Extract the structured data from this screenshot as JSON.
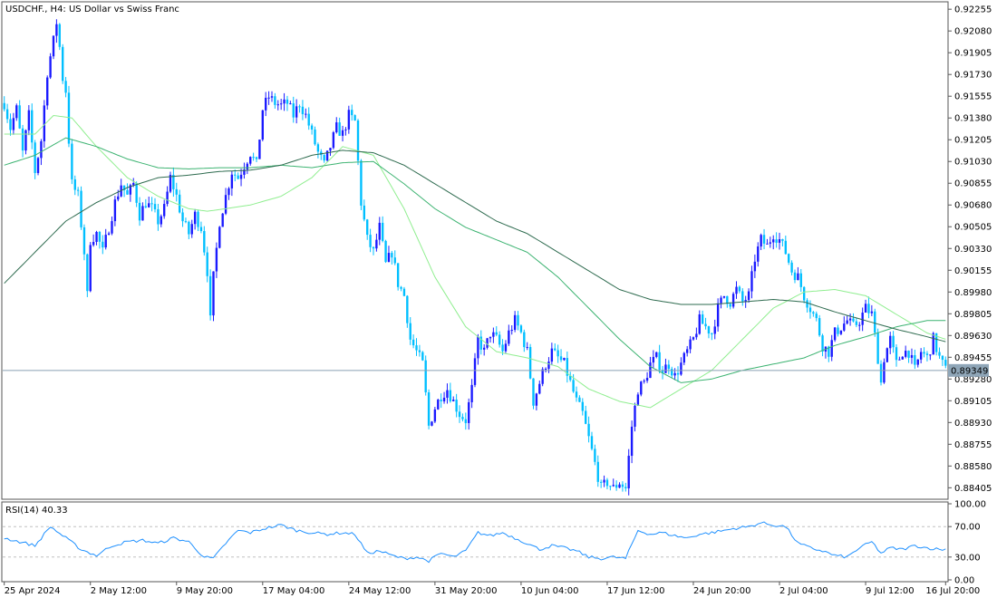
{
  "main_panel": {
    "header": "USDCHF., H4:  US Dollar vs Swiss Franc",
    "price_ticks": [
      "0.92255",
      "0.92080",
      "0.91905",
      "0.91730",
      "0.91555",
      "0.91380",
      "0.91205",
      "0.91030",
      "0.90855",
      "0.90680",
      "0.90505",
      "0.90330",
      "0.90155",
      "0.89980",
      "0.89805",
      "0.89630",
      "0.89455",
      "0.89280",
      "0.89105",
      "0.88930",
      "0.88755",
      "0.88580",
      "0.88405"
    ],
    "last_price_label": "0.89349"
  },
  "rsi_panel": {
    "header": "RSI(14) 40.33",
    "ticks": [
      "100.00",
      "70.00",
      "30.00",
      "0.00"
    ]
  },
  "time_labels": [
    "25 Apr 2024",
    "2 May 12:00",
    "9 May 20:00",
    "17 May 04:00",
    "24 May 12:00",
    "31 May 20:00",
    "10 Jun 04:00",
    "17 Jun 12:00",
    "24 Jun 20:00",
    "2 Jul 04:00",
    "9 Jul 12:00",
    "16 Jul 20:00"
  ],
  "colors": {
    "bull": "#1a1aff",
    "bear": "#00bfff",
    "ma_fast": "#90ee90",
    "ma_mid": "#3cb371",
    "ma_slow": "#2e6b4f",
    "rsi": "#1e90ff",
    "grid": "#c0c0c0",
    "last_price_line": "#8aa0b4"
  },
  "chart_data": {
    "type": "candlestick",
    "symbol": "USDCHF.",
    "timeframe": "H4",
    "y_range": [
      0.8832,
      0.923
    ],
    "last_price": 0.89349,
    "price_path": [
      [
        0,
        0.915
      ],
      [
        2,
        0.913
      ],
      [
        4,
        0.9145
      ],
      [
        6,
        0.911
      ],
      [
        8,
        0.914
      ],
      [
        10,
        0.9095
      ],
      [
        12,
        0.912
      ],
      [
        14,
        0.9175
      ],
      [
        16,
        0.92
      ],
      [
        17,
        0.9215
      ],
      [
        18,
        0.9195
      ],
      [
        19,
        0.917
      ],
      [
        20,
        0.916
      ],
      [
        21,
        0.912
      ],
      [
        22,
        0.9085
      ],
      [
        24,
        0.9075
      ],
      [
        26,
        0.903
      ],
      [
        27,
        0.8995
      ],
      [
        28,
        0.904
      ],
      [
        30,
        0.9045
      ],
      [
        32,
        0.903
      ],
      [
        34,
        0.905
      ],
      [
        36,
        0.907
      ],
      [
        38,
        0.9085
      ],
      [
        40,
        0.9075
      ],
      [
        42,
        0.9085
      ],
      [
        44,
        0.906
      ],
      [
        46,
        0.907
      ],
      [
        48,
        0.9065
      ],
      [
        50,
        0.9055
      ],
      [
        52,
        0.9065
      ],
      [
        54,
        0.909
      ],
      [
        56,
        0.9075
      ],
      [
        58,
        0.9055
      ],
      [
        60,
        0.9045
      ],
      [
        62,
        0.906
      ],
      [
        64,
        0.905
      ],
      [
        66,
        0.9015
      ],
      [
        67,
        0.8975
      ],
      [
        68,
        0.901
      ],
      [
        70,
        0.9055
      ],
      [
        72,
        0.9075
      ],
      [
        74,
        0.9095
      ],
      [
        76,
        0.909
      ],
      [
        78,
        0.91
      ],
      [
        80,
        0.911
      ],
      [
        82,
        0.91
      ],
      [
        84,
        0.9145
      ],
      [
        86,
        0.9155
      ],
      [
        88,
        0.915
      ],
      [
        90,
        0.9148
      ],
      [
        92,
        0.915
      ],
      [
        94,
        0.914
      ],
      [
        96,
        0.915
      ],
      [
        98,
        0.914
      ],
      [
        100,
        0.9125
      ],
      [
        102,
        0.911
      ],
      [
        104,
        0.91
      ],
      [
        106,
        0.9115
      ],
      [
        108,
        0.913
      ],
      [
        110,
        0.9125
      ],
      [
        112,
        0.914
      ],
      [
        114,
        0.9135
      ],
      [
        116,
        0.907
      ],
      [
        118,
        0.904
      ],
      [
        120,
        0.903
      ],
      [
        122,
        0.905
      ],
      [
        124,
        0.902
      ],
      [
        126,
        0.903
      ],
      [
        128,
        0.9005
      ],
      [
        130,
        0.8995
      ],
      [
        132,
        0.896
      ],
      [
        134,
        0.895
      ],
      [
        136,
        0.894
      ],
      [
        138,
        0.889
      ],
      [
        140,
        0.8905
      ],
      [
        142,
        0.8915
      ],
      [
        144,
        0.892
      ],
      [
        146,
        0.891
      ],
      [
        148,
        0.89
      ],
      [
        150,
        0.8895
      ],
      [
        152,
        0.892
      ],
      [
        154,
        0.896
      ],
      [
        156,
        0.895
      ],
      [
        158,
        0.8965
      ],
      [
        160,
        0.896
      ],
      [
        162,
        0.895
      ],
      [
        164,
        0.8965
      ],
      [
        166,
        0.8975
      ],
      [
        168,
        0.8965
      ],
      [
        170,
        0.895
      ],
      [
        172,
        0.891
      ],
      [
        174,
        0.8925
      ],
      [
        176,
        0.894
      ],
      [
        178,
        0.895
      ],
      [
        180,
        0.8945
      ],
      [
        182,
        0.894
      ],
      [
        184,
        0.8925
      ],
      [
        186,
        0.891
      ],
      [
        188,
        0.89
      ],
      [
        190,
        0.888
      ],
      [
        192,
        0.886
      ],
      [
        194,
        0.884
      ],
      [
        196,
        0.8845
      ],
      [
        198,
        0.884
      ],
      [
        200,
        0.8845
      ],
      [
        202,
        0.884
      ],
      [
        204,
        0.889
      ],
      [
        206,
        0.892
      ],
      [
        208,
        0.8925
      ],
      [
        210,
        0.894
      ],
      [
        212,
        0.8945
      ],
      [
        214,
        0.8935
      ],
      [
        216,
        0.894
      ],
      [
        218,
        0.893
      ],
      [
        220,
        0.894
      ],
      [
        222,
        0.895
      ],
      [
        224,
        0.896
      ],
      [
        226,
        0.8975
      ],
      [
        228,
        0.897
      ],
      [
        230,
        0.8965
      ],
      [
        232,
        0.8985
      ],
      [
        234,
        0.8995
      ],
      [
        236,
        0.899
      ],
      [
        238,
        0.9
      ],
      [
        240,
        0.899
      ],
      [
        242,
        0.8995
      ],
      [
        244,
        0.9025
      ],
      [
        246,
        0.904
      ],
      [
        248,
        0.9035
      ],
      [
        250,
        0.9045
      ],
      [
        252,
        0.904
      ],
      [
        254,
        0.903
      ],
      [
        256,
        0.9015
      ],
      [
        258,
        0.901
      ],
      [
        260,
        0.8995
      ],
      [
        262,
        0.8985
      ],
      [
        264,
        0.8975
      ],
      [
        266,
        0.8955
      ],
      [
        268,
        0.895
      ],
      [
        270,
        0.8965
      ],
      [
        272,
        0.897
      ],
      [
        274,
        0.8975
      ],
      [
        276,
        0.897
      ],
      [
        278,
        0.8975
      ],
      [
        280,
        0.8985
      ],
      [
        282,
        0.898
      ],
      [
        284,
        0.8945
      ],
      [
        285,
        0.8925
      ],
      [
        286,
        0.8945
      ],
      [
        288,
        0.896
      ],
      [
        290,
        0.894
      ],
      [
        292,
        0.895
      ],
      [
        294,
        0.895
      ],
      [
        296,
        0.8935
      ],
      [
        298,
        0.895
      ],
      [
        300,
        0.8945
      ],
      [
        302,
        0.896
      ],
      [
        304,
        0.8945
      ],
      [
        306,
        0.8935
      ]
    ],
    "moving_averages": [
      {
        "color_key": "ma_fast",
        "path": [
          [
            0,
            0.9125
          ],
          [
            10,
            0.9125
          ],
          [
            16,
            0.914
          ],
          [
            22,
            0.9138
          ],
          [
            30,
            0.9115
          ],
          [
            40,
            0.909
          ],
          [
            50,
            0.9075
          ],
          [
            60,
            0.9065
          ],
          [
            66,
            0.9063
          ],
          [
            72,
            0.9065
          ],
          [
            80,
            0.9068
          ],
          [
            90,
            0.9075
          ],
          [
            100,
            0.909
          ],
          [
            110,
            0.9115
          ],
          [
            120,
            0.9108
          ],
          [
            130,
            0.9065
          ],
          [
            140,
            0.901
          ],
          [
            150,
            0.897
          ],
          [
            160,
            0.895
          ],
          [
            170,
            0.8945
          ],
          [
            180,
            0.8938
          ],
          [
            190,
            0.892
          ],
          [
            200,
            0.891
          ],
          [
            210,
            0.8905
          ],
          [
            220,
            0.892
          ],
          [
            230,
            0.8935
          ],
          [
            240,
            0.896
          ],
          [
            250,
            0.8985
          ],
          [
            260,
            0.8998
          ],
          [
            270,
            0.9
          ],
          [
            280,
            0.8995
          ],
          [
            290,
            0.898
          ],
          [
            300,
            0.8965
          ],
          [
            306,
            0.896
          ]
        ]
      },
      {
        "color_key": "ma_mid",
        "path": [
          [
            0,
            0.91
          ],
          [
            10,
            0.9108
          ],
          [
            20,
            0.9122
          ],
          [
            30,
            0.9115
          ],
          [
            40,
            0.9105
          ],
          [
            50,
            0.9098
          ],
          [
            60,
            0.9097
          ],
          [
            70,
            0.9098
          ],
          [
            80,
            0.9098
          ],
          [
            90,
            0.91
          ],
          [
            100,
            0.9098
          ],
          [
            110,
            0.9102
          ],
          [
            120,
            0.9103
          ],
          [
            130,
            0.9085
          ],
          [
            140,
            0.9065
          ],
          [
            150,
            0.905
          ],
          [
            160,
            0.904
          ],
          [
            170,
            0.903
          ],
          [
            180,
            0.901
          ],
          [
            190,
            0.8985
          ],
          [
            200,
            0.896
          ],
          [
            210,
            0.8938
          ],
          [
            220,
            0.8925
          ],
          [
            230,
            0.8928
          ],
          [
            240,
            0.8935
          ],
          [
            250,
            0.894
          ],
          [
            260,
            0.8945
          ],
          [
            270,
            0.8955
          ],
          [
            280,
            0.8962
          ],
          [
            290,
            0.897
          ],
          [
            300,
            0.8975
          ],
          [
            306,
            0.8975
          ]
        ]
      },
      {
        "color_key": "ma_slow",
        "path": [
          [
            0,
            0.9005
          ],
          [
            10,
            0.903
          ],
          [
            20,
            0.9055
          ],
          [
            30,
            0.907
          ],
          [
            40,
            0.9082
          ],
          [
            50,
            0.909
          ],
          [
            60,
            0.9092
          ],
          [
            70,
            0.9095
          ],
          [
            80,
            0.9096
          ],
          [
            90,
            0.91
          ],
          [
            100,
            0.9108
          ],
          [
            110,
            0.9112
          ],
          [
            120,
            0.911
          ],
          [
            130,
            0.91
          ],
          [
            140,
            0.9085
          ],
          [
            150,
            0.907
          ],
          [
            160,
            0.9055
          ],
          [
            170,
            0.9045
          ],
          [
            180,
            0.903
          ],
          [
            190,
            0.9015
          ],
          [
            200,
            0.9
          ],
          [
            210,
            0.8992
          ],
          [
            220,
            0.8988
          ],
          [
            230,
            0.8988
          ],
          [
            240,
            0.899
          ],
          [
            250,
            0.8992
          ],
          [
            260,
            0.899
          ],
          [
            270,
            0.8982
          ],
          [
            280,
            0.8975
          ],
          [
            290,
            0.8968
          ],
          [
            300,
            0.8962
          ],
          [
            306,
            0.8958
          ]
        ]
      }
    ],
    "rsi": {
      "name": "RSI(14)",
      "last": 40.33,
      "y_range": [
        0,
        100
      ],
      "levels": [
        70,
        30
      ],
      "path": [
        [
          0,
          55
        ],
        [
          5,
          50
        ],
        [
          10,
          45
        ],
        [
          15,
          70
        ],
        [
          20,
          55
        ],
        [
          25,
          40
        ],
        [
          30,
          32
        ],
        [
          35,
          45
        ],
        [
          40,
          50
        ],
        [
          45,
          52
        ],
        [
          50,
          48
        ],
        [
          55,
          55
        ],
        [
          60,
          50
        ],
        [
          65,
          30
        ],
        [
          68,
          28
        ],
        [
          72,
          48
        ],
        [
          76,
          65
        ],
        [
          80,
          62
        ],
        [
          85,
          68
        ],
        [
          90,
          72
        ],
        [
          95,
          65
        ],
        [
          100,
          62
        ],
        [
          105,
          60
        ],
        [
          110,
          62
        ],
        [
          114,
          60
        ],
        [
          118,
          35
        ],
        [
          122,
          38
        ],
        [
          126,
          32
        ],
        [
          130,
          28
        ],
        [
          134,
          30
        ],
        [
          138,
          25
        ],
        [
          142,
          35
        ],
        [
          146,
          30
        ],
        [
          150,
          38
        ],
        [
          154,
          62
        ],
        [
          158,
          58
        ],
        [
          162,
          62
        ],
        [
          166,
          55
        ],
        [
          170,
          48
        ],
        [
          174,
          40
        ],
        [
          178,
          45
        ],
        [
          182,
          42
        ],
        [
          186,
          38
        ],
        [
          190,
          30
        ],
        [
          194,
          28
        ],
        [
          198,
          30
        ],
        [
          202,
          28
        ],
        [
          206,
          65
        ],
        [
          210,
          60
        ],
        [
          214,
          62
        ],
        [
          218,
          58
        ],
        [
          222,
          55
        ],
        [
          226,
          60
        ],
        [
          230,
          62
        ],
        [
          234,
          65
        ],
        [
          238,
          68
        ],
        [
          242,
          70
        ],
        [
          246,
          75
        ],
        [
          250,
          72
        ],
        [
          254,
          70
        ],
        [
          258,
          48
        ],
        [
          262,
          42
        ],
        [
          266,
          38
        ],
        [
          270,
          32
        ],
        [
          274,
          30
        ],
        [
          278,
          42
        ],
        [
          282,
          50
        ],
        [
          285,
          35
        ],
        [
          288,
          42
        ],
        [
          292,
          40
        ],
        [
          296,
          45
        ],
        [
          300,
          42
        ],
        [
          304,
          40
        ],
        [
          306,
          40.33
        ]
      ]
    },
    "x_count": 307
  }
}
